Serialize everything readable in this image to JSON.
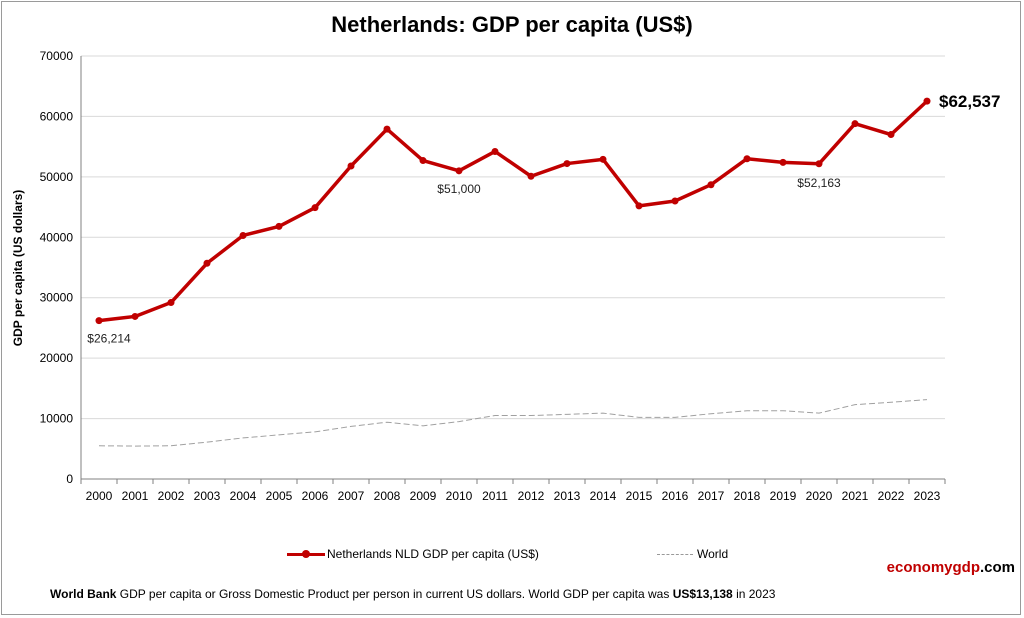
{
  "title": "Netherlands: GDP per capita (US$)",
  "ylabel": "GDP per capita (US dollars)",
  "legend": {
    "series1": "Netherlands NLD GDP per capita (US$)",
    "series2": "World"
  },
  "brand": {
    "part1": "economygdp",
    "part2": ".com"
  },
  "footer": {
    "source": "World Bank",
    "text1": " GDP per capita or Gross Domestic Product per person in current US dollars.   World GDP per capita was ",
    "world_value": "US$13,138",
    "text2": "  in 2023"
  },
  "colors": {
    "netherlands": "#c00000",
    "world": "#a0a0a0"
  },
  "chart_data": {
    "type": "line",
    "categories": [
      "2000",
      "2001",
      "2002",
      "2003",
      "2004",
      "2005",
      "2006",
      "2007",
      "2008",
      "2009",
      "2010",
      "2011",
      "2012",
      "2013",
      "2014",
      "2015",
      "2016",
      "2017",
      "2018",
      "2019",
      "2020",
      "2021",
      "2022",
      "2023"
    ],
    "series": [
      {
        "name": "Netherlands NLD GDP per capita (US$)",
        "values": [
          26214,
          26900,
          29200,
          35700,
          40300,
          41800,
          44900,
          51800,
          57900,
          52700,
          51000,
          54200,
          50100,
          52200,
          52900,
          45200,
          46000,
          48700,
          53000,
          52400,
          52163,
          58800,
          57000,
          62537
        ]
      },
      {
        "name": "World",
        "values": [
          5500,
          5450,
          5500,
          6100,
          6800,
          7300,
          7800,
          8700,
          9400,
          8800,
          9500,
          10500,
          10500,
          10700,
          10900,
          10200,
          10200,
          10800,
          11300,
          11300,
          10900,
          12300,
          12700,
          13138
        ]
      }
    ],
    "yticks": [
      "0",
      "10000",
      "20000",
      "30000",
      "40000",
      "50000",
      "60000",
      "70000"
    ],
    "ylim": [
      0,
      70000
    ],
    "annotations": [
      {
        "index": 0,
        "text": "$26,214"
      },
      {
        "index": 10,
        "text": "$51,000"
      },
      {
        "index": 20,
        "text": "$52,163"
      },
      {
        "index": 23,
        "text": "$62,537",
        "bold": true
      }
    ],
    "grid": true,
    "legend_position": "bottom"
  }
}
